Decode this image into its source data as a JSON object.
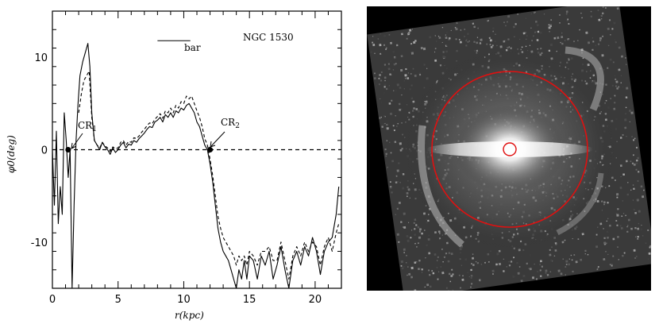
{
  "chart_data": [
    {
      "type": "line",
      "title": "",
      "xlabel": "r(kpc)",
      "ylabel": "φ0(deg)",
      "xlim": [
        0,
        22
      ],
      "ylim": [
        -15,
        15
      ],
      "xticks": [
        0,
        5,
        10,
        15,
        20
      ],
      "yticks": [
        -10,
        0,
        10
      ],
      "grid": false,
      "legend": "none",
      "annotations": {
        "galaxy": "NGC 1530",
        "bar": "bar",
        "bar_extent": [
          8.0,
          10.5
        ],
        "bar_y": 11.8,
        "cr1": {
          "label": "CR",
          "sub": "1",
          "x": 1.2,
          "y": 0
        },
        "cr2": {
          "label": "CR",
          "sub": "2",
          "x": 12.0,
          "y": 0
        }
      },
      "series": [
        {
          "style": "solid",
          "color": "#000000",
          "x": [
            0.0,
            0.15,
            0.3,
            0.45,
            0.6,
            0.75,
            0.9,
            1.05,
            1.2,
            1.35,
            1.5,
            1.65,
            1.8,
            1.95,
            2.1,
            2.3,
            2.5,
            2.7,
            2.85,
            3.0,
            3.2,
            3.4,
            3.6,
            3.8,
            4.0,
            4.2,
            4.4,
            4.6,
            4.8,
            5.0,
            5.2,
            5.4,
            5.6,
            5.8,
            6.0,
            6.2,
            6.4,
            6.6,
            6.8,
            7.0,
            7.2,
            7.4,
            7.6,
            7.8,
            8.0,
            8.2,
            8.4,
            8.6,
            8.8,
            9.0,
            9.2,
            9.4,
            9.6,
            9.8,
            10.0,
            10.2,
            10.4,
            10.6,
            10.8,
            11.0,
            11.2,
            11.4,
            11.6,
            11.8,
            12.0,
            12.2,
            12.4,
            12.6,
            12.8,
            13.0,
            13.2,
            13.4,
            13.6,
            13.8,
            14.0,
            14.2,
            14.4,
            14.6,
            14.8,
            15.0,
            15.3,
            15.6,
            15.9,
            16.2,
            16.5,
            16.8,
            17.1,
            17.4,
            17.7,
            18.0,
            18.3,
            18.6,
            18.9,
            19.2,
            19.5,
            19.8,
            20.1,
            20.4,
            20.7,
            21.0,
            21.3,
            21.6,
            21.8
          ],
          "y": [
            0,
            -6,
            2,
            -8,
            -4,
            -7,
            4,
            1,
            -3,
            0,
            -15,
            -6,
            1,
            5,
            8,
            9.5,
            10.5,
            11.5,
            9,
            4,
            1,
            0.5,
            0,
            0.8,
            0.3,
            0,
            -0.5,
            0.2,
            -0.3,
            0,
            0.5,
            0.8,
            0.2,
            0.6,
            0.5,
            1.0,
            0.8,
            1.2,
            1.5,
            1.8,
            2.2,
            2.5,
            2.4,
            3.0,
            3.2,
            3.5,
            3.0,
            3.8,
            3.5,
            4.0,
            3.5,
            4.2,
            4.0,
            4.5,
            4.3,
            4.8,
            5.0,
            4.5,
            4.0,
            3.0,
            2.5,
            1.5,
            0.5,
            0.0,
            -1.5,
            -3.5,
            -6,
            -8.5,
            -10,
            -11,
            -11.5,
            -12,
            -13,
            -14,
            -15,
            -13,
            -14,
            -12,
            -14,
            -11.5,
            -12,
            -14,
            -11.5,
            -12.5,
            -11,
            -14,
            -12.5,
            -10.5,
            -13,
            -15,
            -12,
            -11,
            -12.5,
            -10.5,
            -11.5,
            -9.5,
            -11,
            -13.5,
            -11,
            -10,
            -9.5,
            -7,
            -4
          ]
        },
        {
          "style": "dashed",
          "color": "#000000",
          "x": [
            2.0,
            2.2,
            2.4,
            2.6,
            2.8,
            3.0,
            3.2,
            3.4,
            3.6,
            3.8,
            4.0,
            4.2,
            4.4,
            4.6,
            4.8,
            5.0,
            5.2,
            5.4,
            5.6,
            5.8,
            6.0,
            6.2,
            6.4,
            6.6,
            6.8,
            7.0,
            7.2,
            7.4,
            7.6,
            7.8,
            8.0,
            8.2,
            8.4,
            8.6,
            8.8,
            9.0,
            9.2,
            9.4,
            9.6,
            9.8,
            10.0,
            10.2,
            10.4,
            10.6,
            10.8,
            11.0,
            11.2,
            11.4,
            11.6,
            11.8,
            12.0,
            12.2,
            12.4,
            12.6,
            12.8,
            13.0,
            13.2,
            13.4,
            13.6,
            13.8,
            14.0,
            14.2,
            14.4,
            14.6,
            14.8,
            15.0,
            15.3,
            15.6,
            15.9,
            16.2,
            16.5,
            16.8,
            17.1,
            17.4,
            17.7,
            18.0,
            18.3,
            18.6,
            18.9,
            19.2,
            19.5,
            19.8,
            20.1,
            20.4,
            20.7,
            21.0,
            21.3,
            21.6,
            21.8
          ],
          "y": [
            4,
            6,
            7.5,
            8.0,
            8.5,
            3.5,
            1,
            0.5,
            0.2,
            0.8,
            0.4,
            0.2,
            -0.2,
            0.3,
            0.1,
            0.2,
            0.8,
            1.0,
            0.5,
            0.9,
            0.8,
            1.3,
            1.2,
            1.5,
            1.9,
            2.2,
            2.6,
            2.9,
            2.8,
            3.3,
            3.6,
            3.9,
            3.4,
            4.2,
            4.0,
            4.5,
            4.0,
            4.8,
            4.5,
            5.2,
            5.0,
            5.8,
            5.5,
            5.8,
            5.0,
            4.2,
            3.5,
            2.5,
            1.2,
            0.5,
            -1.0,
            -2.8,
            -5.0,
            -7.2,
            -8.5,
            -9.5,
            -10.0,
            -10.5,
            -11.0,
            -11.5,
            -12.5,
            -11.5,
            -12.0,
            -11.5,
            -12.5,
            -11.0,
            -11.5,
            -12.5,
            -11.0,
            -11.0,
            -10.5,
            -12.0,
            -12.0,
            -10.0,
            -12.0,
            -14.0,
            -11.5,
            -10.5,
            -11.5,
            -10.0,
            -11.0,
            -10.0,
            -10.5,
            -12.5,
            -10.5,
            -9.5,
            -11.0,
            -9.0,
            -8.0
          ]
        }
      ]
    }
  ]
}
